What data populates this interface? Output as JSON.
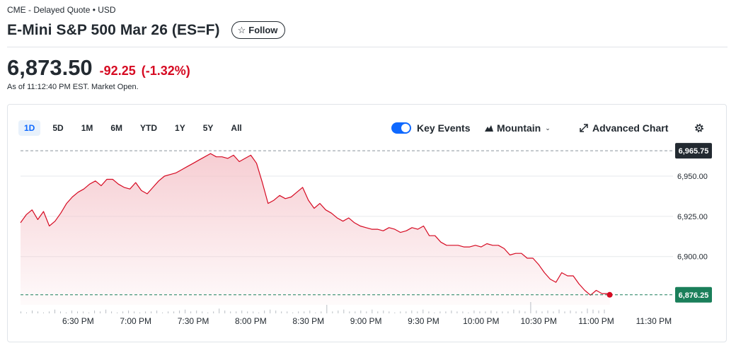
{
  "header": {
    "exchange_info": "CME - Delayed Quote • USD",
    "title": "E-Mini S&P 500 Mar 26 (ES=F)",
    "follow_label": "Follow"
  },
  "quote": {
    "price": "6,873.50",
    "change": "-92.25",
    "change_percent": "(-1.32%)",
    "as_of": "As of 11:12:40 PM EST. Market Open."
  },
  "chart_controls": {
    "ranges": [
      "1D",
      "5D",
      "1M",
      "6M",
      "YTD",
      "1Y",
      "5Y",
      "All"
    ],
    "active_range": "1D",
    "key_events_label": "Key Events",
    "key_events_on": true,
    "chart_type_label": "Mountain",
    "advanced_chart_label": "Advanced Chart"
  },
  "colors": {
    "line": "#d60a22",
    "fill_top": "#f5c5cb",
    "up_badge": "#1a7f5a",
    "dark_badge": "#232a31",
    "accent": "#0f69ff"
  },
  "chart_data": {
    "type": "area",
    "title": "",
    "xlabel": "",
    "ylabel": "",
    "ylim": [
      6870,
      6968
    ],
    "y_ticks": [
      6950,
      6925,
      6900
    ],
    "y_tick_labels": [
      "6,950.00",
      "6,925.00",
      "6,900.00"
    ],
    "x_ticks": [
      "6:30 PM",
      "7:00 PM",
      "7:30 PM",
      "8:00 PM",
      "8:30 PM",
      "9:00 PM",
      "9:30 PM",
      "10:00 PM",
      "10:30 PM",
      "11:00 PM",
      "11:30 PM"
    ],
    "x_tick_minutes": [
      390,
      420,
      450,
      480,
      510,
      540,
      570,
      600,
      630,
      660,
      690
    ],
    "x_range_minutes": [
      360,
      700
    ],
    "previous_close": 6965.75,
    "previous_close_label": "6,965.75",
    "current_value": 6876.25,
    "current_value_label": "6,876.25",
    "series": [
      {
        "x": [
          360,
          363,
          366,
          369,
          372,
          375,
          378,
          381,
          384,
          387,
          390,
          393,
          396,
          399,
          402,
          405,
          408,
          411,
          414,
          417,
          420,
          423,
          426,
          429,
          432,
          435,
          438,
          441,
          444,
          447,
          450,
          453,
          456,
          459,
          462,
          465,
          468,
          471,
          474,
          477,
          480,
          483,
          486,
          489,
          492,
          495,
          498,
          501,
          504,
          507,
          510,
          513,
          516,
          519,
          522,
          525,
          528,
          531,
          534,
          537,
          540,
          543,
          546,
          549,
          552,
          555,
          558,
          561,
          564,
          567,
          570,
          573,
          576,
          579,
          582,
          585,
          588,
          591,
          594,
          597,
          600,
          603,
          606,
          609,
          612,
          615,
          618,
          621,
          624,
          627,
          630,
          633,
          636,
          639,
          642,
          645,
          648,
          651,
          654,
          657,
          660,
          663,
          666,
          667
        ],
        "values": [
          6921,
          6926,
          6929,
          6923,
          6928,
          6919,
          6922,
          6927,
          6933,
          6937,
          6940,
          6942,
          6945,
          6947,
          6944,
          6948,
          6948,
          6945,
          6943,
          6942,
          6946,
          6941,
          6939,
          6943,
          6947,
          6950,
          6951,
          6952,
          6954,
          6956,
          6958,
          6960,
          6962,
          6964,
          6962,
          6962,
          6961,
          6963,
          6959,
          6961,
          6963,
          6958,
          6946,
          6933,
          6935,
          6938,
          6936,
          6937,
          6940,
          6943,
          6935,
          6930,
          6933,
          6929,
          6927,
          6924,
          6922,
          6924,
          6921,
          6919,
          6918,
          6917,
          6917,
          6916,
          6918,
          6917,
          6915,
          6916,
          6918,
          6917,
          6919,
          6913,
          6913,
          6909,
          6907,
          6907,
          6907,
          6906,
          6906,
          6907,
          6906,
          6908,
          6907,
          6907,
          6905,
          6901,
          6902,
          6902,
          6899,
          6899,
          6895,
          6890,
          6886,
          6884,
          6890,
          6888,
          6888,
          6883,
          6879,
          6876,
          6879,
          6877,
          6877,
          6876.25
        ]
      }
    ],
    "volume": [
      2,
      1,
      3,
      2,
      1,
      2,
      4,
      2,
      1,
      3,
      2,
      2,
      1,
      3,
      2,
      4,
      2,
      1,
      2,
      3,
      2,
      1,
      2,
      2,
      3,
      1,
      2,
      2,
      3,
      4,
      2,
      3,
      2,
      1,
      2,
      5,
      3,
      2,
      2,
      3,
      2,
      2,
      1,
      3,
      4,
      3,
      2,
      2,
      1,
      2,
      2,
      3,
      1,
      2,
      9,
      2,
      3,
      4,
      2,
      2,
      3,
      2,
      4,
      2,
      3,
      2,
      1,
      2,
      2,
      3,
      2,
      4,
      2,
      1,
      2,
      2,
      3,
      2,
      2,
      1,
      3,
      2,
      2,
      3,
      2,
      2,
      2,
      4,
      3,
      2,
      12,
      3,
      2,
      3,
      2,
      4,
      2,
      3,
      2,
      2,
      5,
      4,
      3,
      4
    ]
  }
}
